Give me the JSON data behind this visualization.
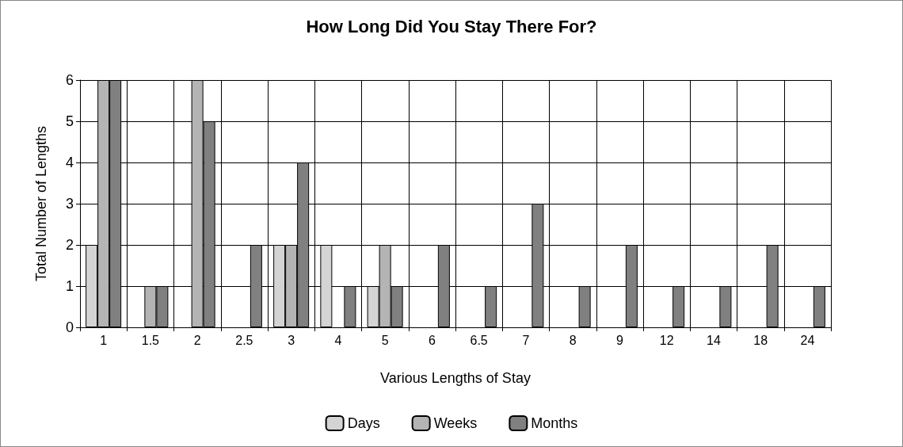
{
  "chart_data": {
    "type": "bar",
    "title": "How Long Did You Stay There For?",
    "xlabel": "Various Lengths of Stay",
    "ylabel": "Total Number of Lengths",
    "categories": [
      "1",
      "1.5",
      "2",
      "2.5",
      "3",
      "4",
      "5",
      "6",
      "6.5",
      "7",
      "8",
      "9",
      "12",
      "14",
      "18",
      "24"
    ],
    "series": [
      {
        "name": "Days",
        "color": "#d4d4d4",
        "values": [
          2,
          0,
          0,
          0,
          2,
          2,
          1,
          0,
          0,
          0,
          0,
          0,
          0,
          0,
          0,
          0
        ]
      },
      {
        "name": "Weeks",
        "color": "#b4b4b4",
        "values": [
          6,
          1,
          6,
          0,
          2,
          0,
          2,
          0,
          0,
          0,
          0,
          0,
          0,
          0,
          0,
          0
        ]
      },
      {
        "name": "Months",
        "color": "#808080",
        "values": [
          6,
          1,
          5,
          2,
          4,
          1,
          1,
          2,
          1,
          3,
          1,
          2,
          1,
          1,
          2,
          1
        ]
      }
    ],
    "ylim": [
      0,
      6
    ],
    "yticks": [
      0,
      1,
      2,
      3,
      4,
      5,
      6
    ],
    "grid": true,
    "legend": "bottom"
  }
}
